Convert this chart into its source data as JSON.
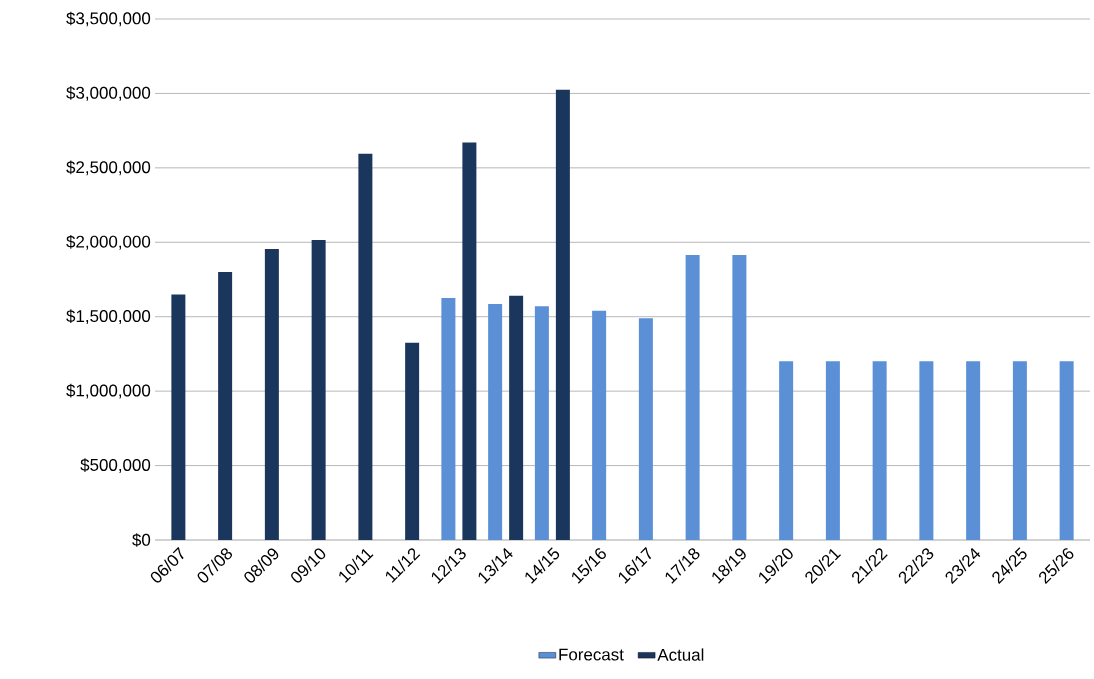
{
  "chart_data": {
    "type": "bar",
    "categories": [
      "06/07",
      "07/08",
      "08/09",
      "09/10",
      "10/11",
      "11/12",
      "12/13",
      "13/14",
      "14/15",
      "15/16",
      "16/17",
      "17/18",
      "18/19",
      "19/20",
      "20/21",
      "21/22",
      "22/23",
      "23/24",
      "24/25",
      "25/26"
    ],
    "series": [
      {
        "name": "Forecast",
        "color": "#5b8fd6",
        "values": [
          null,
          null,
          null,
          null,
          null,
          null,
          1625000,
          1585000,
          1570000,
          1540000,
          1490000,
          1915000,
          1915000,
          1200000,
          1200000,
          1200000,
          1200000,
          1200000,
          1200000,
          1200000
        ]
      },
      {
        "name": "Actual",
        "color": "#1b365d",
        "values": [
          1650000,
          1800000,
          1955000,
          2015000,
          2595000,
          1325000,
          2670000,
          1640000,
          3025000,
          null,
          null,
          null,
          null,
          null,
          null,
          null,
          null,
          null,
          null,
          null
        ]
      }
    ],
    "ylim": [
      0,
      3500000
    ],
    "yticks": [
      {
        "value": 0,
        "label": "$0"
      },
      {
        "value": 500000,
        "label": "$500,000"
      },
      {
        "value": 1000000,
        "label": "$1,000,000"
      },
      {
        "value": 1500000,
        "label": "$1,500,000"
      },
      {
        "value": 2000000,
        "label": "$2,000,000"
      },
      {
        "value": 2500000,
        "label": "$2,500,000"
      },
      {
        "value": 3000000,
        "label": "$3,000,000"
      },
      {
        "value": 3500000,
        "label": "$3,500,000"
      }
    ],
    "grid": "y",
    "legend": "bottom"
  }
}
